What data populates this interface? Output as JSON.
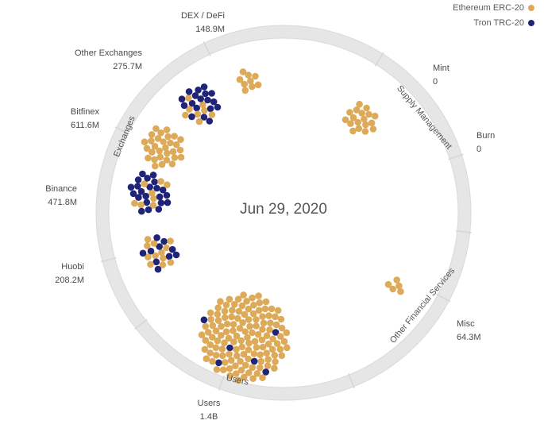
{
  "chart_data": {
    "type": "scatter",
    "title": "",
    "date": "Jun 29, 2020",
    "legend_position": "top-right",
    "series": [
      {
        "name": "Ethereum ERC-20",
        "color": "#dcaa58"
      },
      {
        "name": "Tron TRC-20",
        "color": "#1f2478"
      }
    ],
    "groups": [
      {
        "name": "Exchanges"
      },
      {
        "name": "Supply Management"
      },
      {
        "name": "Other Financial Services"
      },
      {
        "name": "Users"
      }
    ],
    "categories": [
      {
        "label": "DEX / DeFi",
        "value": "148.9M",
        "group": "Exchanges",
        "erc20": 9,
        "trc20": 0
      },
      {
        "label": "Other Exchanges",
        "value": "275.7M",
        "group": "Exchanges",
        "erc20": 8,
        "trc20": 18
      },
      {
        "label": "Bitfinex",
        "value": "611.6M",
        "group": "Exchanges",
        "erc20": 30,
        "trc20": 0
      },
      {
        "label": "Binance",
        "value": "471.8M",
        "group": "Exchanges",
        "erc20": 8,
        "trc20": 22
      },
      {
        "label": "Huobi",
        "value": "208.2M",
        "group": "Exchanges",
        "erc20": 12,
        "trc20": 10
      },
      {
        "label": "Mint",
        "value": "0",
        "group": "Supply Management",
        "erc20": 18,
        "trc20": 0
      },
      {
        "label": "Burn",
        "value": "0",
        "group": "Supply Management",
        "erc20": 0,
        "trc20": 0
      },
      {
        "label": "Misc",
        "value": "64.3M",
        "group": "Other Financial Services",
        "erc20": 5,
        "trc20": 0
      },
      {
        "label": "Users",
        "value": "1.4B",
        "group": "Users",
        "erc20": 130,
        "trc20": 6
      }
    ]
  }
}
